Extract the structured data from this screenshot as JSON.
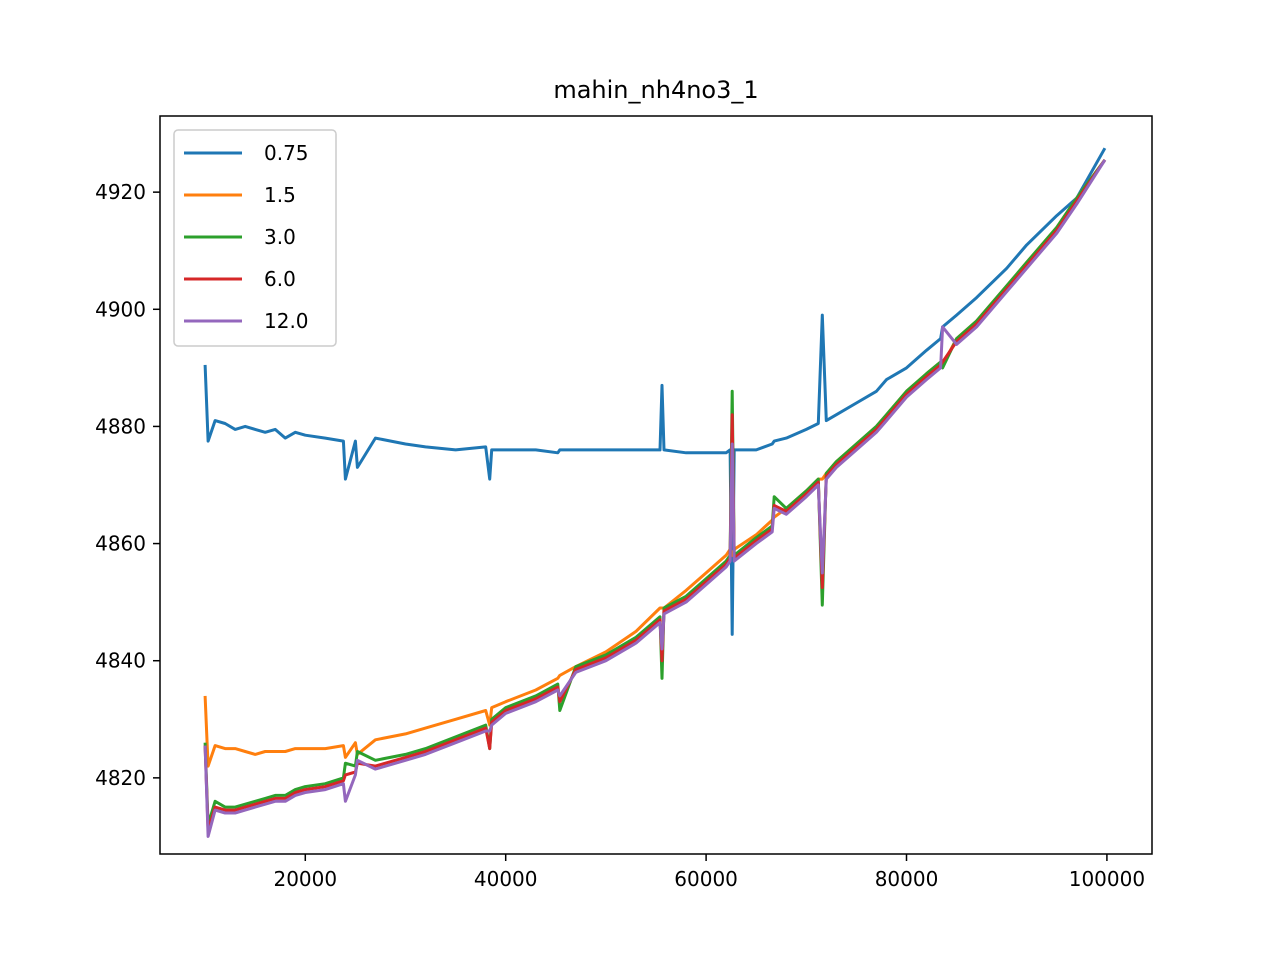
{
  "chart_data": {
    "type": "line",
    "title": "mahin_nh4no3_1",
    "xlabel": "",
    "ylabel": "",
    "xlim": [
      5500,
      104500
    ],
    "ylim": [
      4807,
      4933
    ],
    "x_ticks": [
      20000,
      40000,
      60000,
      80000,
      100000
    ],
    "x_tick_labels": [
      "20000",
      "40000",
      "60000",
      "80000",
      "100000"
    ],
    "y_ticks": [
      4820,
      4840,
      4860,
      4880,
      4900,
      4920
    ],
    "y_tick_labels": [
      "4820",
      "4840",
      "4860",
      "4880",
      "4900",
      "4920"
    ],
    "grid": false,
    "legend_position": "top-left",
    "x": [
      10000,
      10300,
      11000,
      12000,
      13000,
      14000,
      15000,
      16000,
      17000,
      18000,
      19000,
      20000,
      22000,
      23800,
      24000,
      25000,
      25200,
      27000,
      30000,
      32000,
      35000,
      38000,
      38400,
      38600,
      40000,
      43000,
      45200,
      45400,
      47000,
      50000,
      53000,
      55400,
      55600,
      55800,
      58000,
      60000,
      62000,
      62400,
      62600,
      62800,
      65000,
      66600,
      66800,
      68000,
      70000,
      71200,
      71600,
      72000,
      73000,
      75000,
      77000,
      78000,
      80000,
      82000,
      83400,
      83600,
      85000,
      87000,
      90000,
      92000,
      95000,
      97000,
      99800
    ],
    "series": [
      {
        "name": "0.75",
        "color": "#1f77b4",
        "values": [
          4890.5,
          4877.5,
          4881,
          4880.5,
          4879.5,
          4880,
          4879.5,
          4879,
          4879.5,
          4878,
          4879,
          4878.5,
          4878,
          4877.5,
          4871,
          4877.5,
          4873,
          4878,
          4877,
          4876.5,
          4876,
          4876.5,
          4871,
          4876,
          4876,
          4876,
          4875.5,
          4876,
          4876,
          4876,
          4876,
          4876,
          4887,
          4876,
          4875.5,
          4875.5,
          4875.5,
          4876,
          4844.5,
          4876,
          4876,
          4877,
          4877.5,
          4878,
          4879.5,
          4880.5,
          4899,
          4881,
          4882,
          4884,
          4886,
          4888,
          4890,
          4893,
          4895,
          4897,
          4899,
          4902,
          4907,
          4911,
          4916,
          4919,
          4927.5
        ]
      },
      {
        "name": "1.5",
        "color": "#ff7f0e",
        "values": [
          4834,
          4822,
          4825.5,
          4825,
          4825,
          4824.5,
          4824,
          4824.5,
          4824.5,
          4824.5,
          4825,
          4825,
          4825,
          4825.5,
          4823.5,
          4826,
          4824,
          4826.5,
          4827.5,
          4828.5,
          4830,
          4831.5,
          4829,
          4832,
          4833,
          4835,
          4837,
          4837.5,
          4839,
          4841.5,
          4845,
          4849,
          4849,
          4849,
          4852,
          4855,
          4858,
          4859,
          4858,
          4859,
          4861.5,
          4864,
          4864.5,
          4866,
          4869,
          4871,
          4871,
          4872,
          4874,
          4877,
          4880,
          4882,
          4886,
          4889,
          4891,
          4890.5,
          4895,
          4898,
          4904,
          4908,
          4914,
          4919,
          4925.5
        ]
      },
      {
        "name": "3.0",
        "color": "#2ca02c",
        "values": [
          4826,
          4812,
          4816,
          4815,
          4815,
          4815.5,
          4816,
          4816.5,
          4817,
          4817,
          4818,
          4818.5,
          4819,
          4820,
          4822.5,
          4822,
          4824.5,
          4823,
          4824,
          4825,
          4827,
          4829,
          4825,
          4830,
          4832,
          4834,
          4836,
          4831.5,
          4839,
          4841,
          4844,
          4847.5,
          4837,
          4849,
          4851,
          4854,
          4857,
          4858,
          4886,
          4858,
          4861,
          4863,
          4868,
          4866,
          4869,
          4871,
          4849.5,
          4872,
          4874,
          4877,
          4880,
          4882,
          4886,
          4889,
          4891,
          4890,
          4895,
          4898,
          4904,
          4908,
          4914,
          4919,
          4925.5
        ]
      },
      {
        "name": "6.0",
        "color": "#d62728",
        "values": [
          4825.5,
          4811,
          4815,
          4814.5,
          4814.5,
          4815,
          4815.5,
          4816,
          4816.5,
          4816.5,
          4817.5,
          4818,
          4818.5,
          4819.5,
          4820.5,
          4821,
          4822.5,
          4822,
          4823.5,
          4824.5,
          4826.5,
          4828.5,
          4825,
          4829.5,
          4831.5,
          4833.5,
          4835.5,
          4833,
          4838.5,
          4840.5,
          4843.5,
          4847,
          4840,
          4848.5,
          4850.5,
          4853.5,
          4856.5,
          4857.5,
          4882,
          4857.5,
          4860.5,
          4862.5,
          4866.5,
          4865.5,
          4868.5,
          4870.5,
          4852.5,
          4871.5,
          4873.5,
          4876.5,
          4879.5,
          4881.5,
          4885.5,
          4888.5,
          4890.5,
          4891,
          4894.5,
          4897.5,
          4903.5,
          4907.5,
          4913.5,
          4918.5,
          4925.5
        ]
      },
      {
        "name": "12.0",
        "color": "#9467bd",
        "values": [
          4825.5,
          4810,
          4814.5,
          4814,
          4814,
          4814.5,
          4815,
          4815.5,
          4816,
          4816,
          4817,
          4817.5,
          4818,
          4819,
          4816,
          4820.5,
          4823,
          4821.5,
          4823,
          4824,
          4826,
          4828,
          4828,
          4829,
          4831,
          4833,
          4835,
          4834,
          4838,
          4840,
          4843,
          4846.5,
          4842,
          4848,
          4850,
          4853,
          4856,
          4857,
          4877,
          4857,
          4860,
          4862,
          4866,
          4865,
          4868,
          4870,
          4855,
          4871,
          4873,
          4876,
          4879,
          4881,
          4885,
          4888,
          4890,
          4897,
          4894,
          4897,
          4903,
          4907,
          4913,
          4918,
          4925.5
        ]
      }
    ]
  }
}
